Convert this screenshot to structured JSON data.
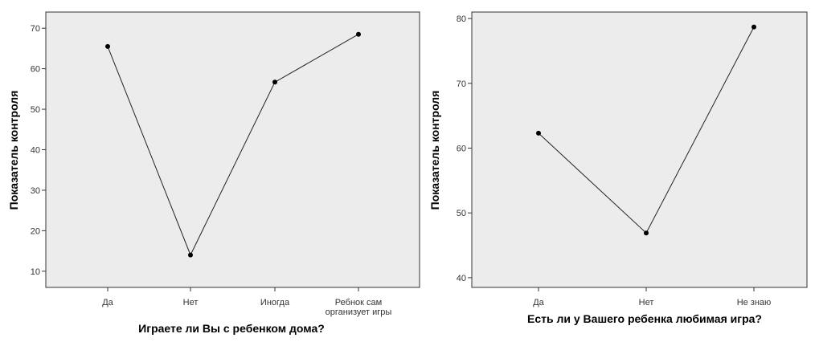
{
  "chart_data": [
    {
      "type": "line",
      "title": "",
      "xlabel": "Играете ли Вы с ребенком дома?",
      "ylabel": "Показатель контроля",
      "categories": [
        "Да",
        "Нет",
        "Иногда",
        "Ребнок сам организует игры"
      ],
      "category_lines": [
        [
          "Да"
        ],
        [
          "Нет"
        ],
        [
          "Иногда"
        ],
        [
          "Ребнок сам",
          "организует игры"
        ]
      ],
      "series": [
        {
          "values": [
            65.5,
            14,
            56.7,
            68.5
          ]
        }
      ],
      "ylim": [
        6,
        74
      ],
      "yticks": [
        10,
        20,
        30,
        40,
        50,
        60,
        70
      ],
      "grid": false,
      "legend": "none",
      "colors": {
        "plot_background": "#ececec",
        "line": "#222222",
        "marker": "#000000"
      }
    },
    {
      "type": "line",
      "title": "",
      "xlabel": "Есть ли у Вашего ребенка любимая игра?",
      "ylabel": "Показатель контроля",
      "categories": [
        "Да",
        "Нет",
        "Не знаю"
      ],
      "category_lines": [
        [
          "Да"
        ],
        [
          "Нет"
        ],
        [
          "Не знаю"
        ]
      ],
      "series": [
        {
          "values": [
            62.3,
            46.9,
            78.7
          ]
        }
      ],
      "ylim": [
        38.5,
        81
      ],
      "yticks": [
        40,
        50,
        60,
        70,
        80
      ],
      "grid": false,
      "legend": "none",
      "colors": {
        "plot_background": "#ececec",
        "line": "#222222",
        "marker": "#000000"
      }
    }
  ]
}
